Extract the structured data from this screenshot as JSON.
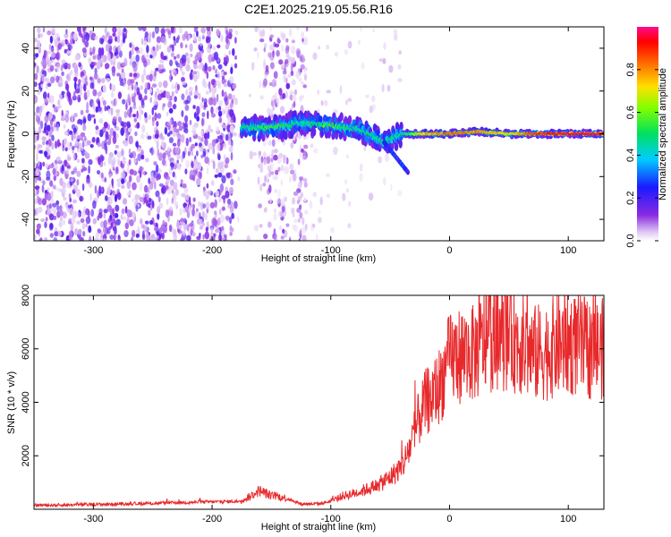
{
  "title": "C2E1.2025.219.05.56.R16",
  "chart_data": [
    {
      "type": "heatmap",
      "title": "C2E1.2025.219.05.56.R16",
      "xlabel": "Height of straight line (km)",
      "ylabel": "Frequency (Hz)",
      "xlim": [
        -350,
        130
      ],
      "ylim": [
        -50,
        50
      ],
      "xticks": [
        "-300",
        "-200",
        "-100",
        "0",
        "100"
      ],
      "xtick_values": [
        -300,
        -200,
        -100,
        0,
        100
      ],
      "yticks": [
        "40",
        "20",
        "0",
        "-20",
        "-40"
      ],
      "ytick_values": [
        40,
        20,
        0,
        -20,
        -40
      ],
      "colorbar": {
        "label": "Normalized spectral amplitude",
        "range": [
          0,
          1
        ],
        "ticks": [
          "0.0",
          "0.2",
          "0.4",
          "0.6",
          "0.8"
        ],
        "tick_values": [
          0.0,
          0.2,
          0.4,
          0.6,
          0.8
        ],
        "colormap": "rainbow (white-purple-blue-cyan-green-yellow-red-magenta)"
      },
      "ridge": [
        {
          "x": -175,
          "freq": 3,
          "amp": 0.45
        },
        {
          "x": -150,
          "freq": 3,
          "amp": 0.55
        },
        {
          "x": -125,
          "freq": 5,
          "amp": 0.45
        },
        {
          "x": -100,
          "freq": 4,
          "amp": 0.55
        },
        {
          "x": -75,
          "freq": 2,
          "amp": 0.45
        },
        {
          "x": -55,
          "freq": -4,
          "amp": 0.5
        },
        {
          "x": -40,
          "freq": 0,
          "amp": 0.45
        },
        {
          "x": -20,
          "freq": 0,
          "amp": 0.75
        },
        {
          "x": 0,
          "freq": 0,
          "amp": 0.85
        },
        {
          "x": 25,
          "freq": 1,
          "amp": 0.8
        },
        {
          "x": 50,
          "freq": 0,
          "amp": 0.7
        },
        {
          "x": 75,
          "freq": 0,
          "amp": 0.9
        },
        {
          "x": 100,
          "freq": 0,
          "amp": 0.95
        },
        {
          "x": 130,
          "freq": 0,
          "amp": 0.95
        }
      ]
    },
    {
      "type": "line",
      "xlabel": "Height of straight line (km)",
      "ylabel": "SNR (10 * v/v)",
      "xlim": [
        -350,
        130
      ],
      "ylim": [
        0,
        8000
      ],
      "xticks": [
        "-300",
        "-200",
        "-100",
        "0",
        "100"
      ],
      "xtick_values": [
        -300,
        -200,
        -100,
        0,
        100
      ],
      "yticks": [
        "8000",
        "6000",
        "4000",
        "2000"
      ],
      "ytick_values": [
        8000,
        6000,
        4000,
        2000
      ],
      "color": "#e8282a",
      "series": [
        {
          "x": [
            -350,
            -325,
            -300,
            -275,
            -250,
            -225,
            -200,
            -175,
            -160,
            -150,
            -140,
            -125,
            -110,
            -100,
            -90,
            -80,
            -70,
            -60,
            -50,
            -40,
            -35,
            -30,
            -25,
            -20,
            -15,
            -10,
            -5,
            0,
            10,
            20,
            25,
            30,
            40,
            50,
            60,
            70,
            80,
            90,
            100,
            110,
            120,
            130
          ],
          "y": [
            150,
            160,
            180,
            200,
            220,
            250,
            280,
            300,
            700,
            500,
            450,
            200,
            200,
            300,
            500,
            600,
            750,
            900,
            1200,
            1600,
            2100,
            2800,
            3500,
            4000,
            4200,
            4500,
            5000,
            5600,
            5800,
            5800,
            6000,
            6400,
            6400,
            6500,
            6200,
            5800,
            5900,
            6100,
            6200,
            6100,
            6000,
            6000
          ]
        }
      ]
    }
  ]
}
